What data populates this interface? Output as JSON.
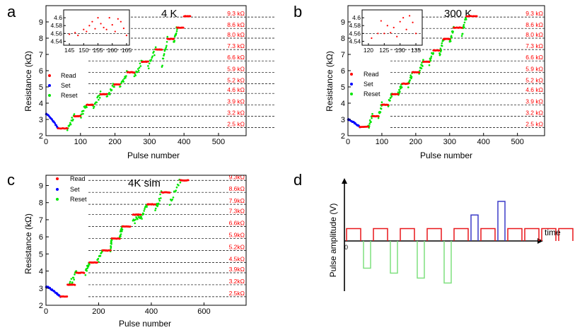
{
  "colors": {
    "read": "#ff0000",
    "set": "#0000ff",
    "reset": "#00e600",
    "level_label": "#ff0000",
    "axis": "#000000",
    "pulse_read": "#e8171a",
    "pulse_set": "#3b3bc8",
    "pulse_reset": "#7fe07f"
  },
  "chart_data": [
    {
      "panel": "a",
      "type": "scatter",
      "annotation": "4 K",
      "xlabel": "Pulse number",
      "ylabel": "Resistance (kΩ)",
      "xlim": [
        0,
        580
      ],
      "ylim": [
        2,
        10
      ],
      "xticks": [
        "0",
        "100",
        "200",
        "300",
        "400",
        "500"
      ],
      "yticks": [
        "2",
        "3",
        "4",
        "5",
        "6",
        "7",
        "8",
        "9"
      ],
      "legend": [
        "Read",
        "Set",
        "Reset"
      ],
      "legend_position": "left",
      "levels": [
        {
          "value": 2.5,
          "label": "2.5 kΩ"
        },
        {
          "value": 3.2,
          "label": "3.2 kΩ"
        },
        {
          "value": 3.9,
          "label": "3.9 kΩ"
        },
        {
          "value": 4.6,
          "label": "4.6 kΩ"
        },
        {
          "value": 5.2,
          "label": "5.2 kΩ"
        },
        {
          "value": 5.9,
          "label": "5.9 kΩ"
        },
        {
          "value": 6.6,
          "label": "6.6 kΩ"
        },
        {
          "value": 7.3,
          "label": "7.3 kΩ"
        },
        {
          "value": 8.0,
          "label": "8.0 kΩ"
        },
        {
          "value": 8.6,
          "label": "8.6 kΩ"
        },
        {
          "value": 9.3,
          "label": "9.3 kΩ"
        }
      ],
      "read_plateaus": [
        {
          "x": [
            35,
            62
          ],
          "y": 2.45
        },
        {
          "x": [
            82,
            100
          ],
          "y": 3.2
        },
        {
          "x": [
            118,
            136
          ],
          "y": 3.9
        },
        {
          "x": [
            158,
            176
          ],
          "y": 4.55
        },
        {
          "x": [
            198,
            214
          ],
          "y": 5.15
        },
        {
          "x": [
            236,
            256
          ],
          "y": 5.9
        },
        {
          "x": [
            278,
            296
          ],
          "y": 6.55
        },
        {
          "x": [
            318,
            336
          ],
          "y": 7.3
        },
        {
          "x": [
            352,
            370
          ],
          "y": 7.95
        },
        {
          "x": [
            380,
            398
          ],
          "y": 8.65
        },
        {
          "x": [
            400,
            418
          ],
          "y": 9.35
        }
      ],
      "set_segments": [
        {
          "x": [
            0,
            35
          ],
          "y_start": 3.35,
          "y_end": 2.45
        }
      ],
      "reset_ramps": [
        {
          "x": [
            62,
            82
          ],
          "y": [
            2.45,
            3.2
          ]
        },
        {
          "x": [
            100,
            118
          ],
          "y": [
            3.2,
            3.9
          ]
        },
        {
          "x": [
            136,
            158
          ],
          "y": [
            3.7,
            4.55
          ]
        },
        {
          "x": [
            176,
            198
          ],
          "y": [
            4.4,
            5.15
          ]
        },
        {
          "x": [
            214,
            236
          ],
          "y": [
            5.0,
            5.9
          ]
        },
        {
          "x": [
            256,
            278
          ],
          "y": [
            5.6,
            6.55
          ]
        },
        {
          "x": [
            296,
            318
          ],
          "y": [
            6.2,
            7.3
          ]
        },
        {
          "x": [
            336,
            352
          ],
          "y": [
            6.3,
            7.95
          ]
        },
        {
          "x": [
            370,
            380
          ],
          "y": [
            7.8,
            8.65
          ]
        }
      ],
      "inset": {
        "xlim": [
          143,
          166
        ],
        "ylim": [
          4.53,
          4.62
        ],
        "xticks": [
          "145",
          "150",
          "155",
          "160",
          "165"
        ],
        "yticks": [
          "4.54",
          "4.56",
          "4.58",
          "4.6"
        ],
        "points": [
          [
            145,
            4.558
          ],
          [
            147,
            4.562
          ],
          [
            148,
            4.555
          ],
          [
            150,
            4.57
          ],
          [
            151,
            4.565
          ],
          [
            152,
            4.58
          ],
          [
            153,
            4.59
          ],
          [
            154,
            4.572
          ],
          [
            155,
            4.6
          ],
          [
            156,
            4.585
          ],
          [
            157,
            4.575
          ],
          [
            158,
            4.57
          ],
          [
            159,
            4.6
          ],
          [
            160,
            4.582
          ],
          [
            161,
            4.565
          ],
          [
            162,
            4.597
          ],
          [
            163,
            4.59
          ],
          [
            164,
            4.573
          ],
          [
            165,
            4.555
          ]
        ]
      }
    },
    {
      "panel": "b",
      "type": "scatter",
      "annotation": "300 K",
      "xlabel": "Pulse number",
      "ylabel": "Resistance (kΩ)",
      "xlim": [
        0,
        580
      ],
      "ylim": [
        2,
        10
      ],
      "xticks": [
        "0",
        "100",
        "200",
        "300",
        "400",
        "500"
      ],
      "yticks": [
        "2",
        "3",
        "4",
        "5",
        "6",
        "7",
        "8",
        "9"
      ],
      "legend": [
        "Read",
        "Set",
        "Reset"
      ],
      "legend_position": "left",
      "levels": [
        {
          "value": 2.5,
          "label": "2.5 kΩ"
        },
        {
          "value": 3.2,
          "label": "3.2 kΩ"
        },
        {
          "value": 3.9,
          "label": "3.9 kΩ"
        },
        {
          "value": 4.6,
          "label": "4.6 kΩ"
        },
        {
          "value": 5.2,
          "label": "5.2 kΩ"
        },
        {
          "value": 5.9,
          "label": "5.9 kΩ"
        },
        {
          "value": 6.6,
          "label": "6.6 kΩ"
        },
        {
          "value": 7.3,
          "label": "7.3 kΩ"
        },
        {
          "value": 8.0,
          "label": "8.0 kΩ"
        },
        {
          "value": 8.6,
          "label": "8.6 kΩ"
        },
        {
          "value": 9.3,
          "label": "9.3 kΩ"
        }
      ],
      "read_plateaus": [
        {
          "x": [
            35,
            60
          ],
          "y": 2.55
        },
        {
          "x": [
            72,
            90
          ],
          "y": 3.2
        },
        {
          "x": [
            100,
            118
          ],
          "y": 3.9
        },
        {
          "x": [
            130,
            148
          ],
          "y": 4.55
        },
        {
          "x": [
            160,
            178
          ],
          "y": 5.2
        },
        {
          "x": [
            190,
            210
          ],
          "y": 5.9
        },
        {
          "x": [
            222,
            240
          ],
          "y": 6.55
        },
        {
          "x": [
            252,
            270
          ],
          "y": 7.25
        },
        {
          "x": [
            282,
            300
          ],
          "y": 7.95
        },
        {
          "x": [
            312,
            336
          ],
          "y": 8.65
        },
        {
          "x": [
            350,
            380
          ],
          "y": 9.35
        }
      ],
      "set_segments": [
        {
          "x": [
            0,
            35
          ],
          "y_start": 3.0,
          "y_end": 2.55
        }
      ],
      "reset_ramps": [
        {
          "x": [
            60,
            72
          ],
          "y": [
            2.55,
            3.2
          ]
        },
        {
          "x": [
            90,
            100
          ],
          "y": [
            3.2,
            3.9
          ]
        },
        {
          "x": [
            118,
            130
          ],
          "y": [
            3.9,
            4.55
          ]
        },
        {
          "x": [
            148,
            160
          ],
          "y": [
            4.5,
            5.2
          ]
        },
        {
          "x": [
            178,
            190
          ],
          "y": [
            5.1,
            5.9
          ]
        },
        {
          "x": [
            210,
            222
          ],
          "y": [
            5.9,
            6.55
          ]
        },
        {
          "x": [
            240,
            252
          ],
          "y": [
            6.5,
            7.25
          ]
        },
        {
          "x": [
            270,
            282
          ],
          "y": [
            7.0,
            7.95
          ]
        },
        {
          "x": [
            300,
            312
          ],
          "y": [
            7.7,
            8.65
          ]
        },
        {
          "x": [
            336,
            350
          ],
          "y": [
            8.2,
            9.35
          ]
        }
      ],
      "inset": {
        "xlim": [
          118,
          137
        ],
        "ylim": [
          4.53,
          4.62
        ],
        "xticks": [
          "120",
          "125",
          "130",
          "135"
        ],
        "yticks": [
          "4.54",
          "4.56",
          "4.58",
          "4.6"
        ],
        "points": [
          [
            121,
            4.548
          ],
          [
            123,
            4.56
          ],
          [
            124,
            4.592
          ],
          [
            125,
            4.56
          ],
          [
            126,
            4.58
          ],
          [
            127,
            4.562
          ],
          [
            128,
            4.575
          ],
          [
            129,
            4.552
          ],
          [
            130,
            4.59
          ],
          [
            131,
            4.6
          ],
          [
            132,
            4.57
          ],
          [
            133,
            4.605
          ],
          [
            134,
            4.588
          ],
          [
            135,
            4.56
          ]
        ]
      }
    },
    {
      "panel": "c",
      "type": "scatter",
      "annotation": "4K sim",
      "xlabel": "Pulse number",
      "ylabel": "Resistance (kΩ)",
      "xlim": [
        0,
        760
      ],
      "ylim": [
        2,
        9.6
      ],
      "xticks": [
        "0",
        "200",
        "400",
        "600"
      ],
      "yticks": [
        "2",
        "3",
        "4",
        "5",
        "6",
        "7",
        "8",
        "9"
      ],
      "legend": [
        "Read",
        "Set",
        "Reset"
      ],
      "legend_position": "top-left",
      "levels": [
        {
          "value": 2.5,
          "label": "2.5kΩ"
        },
        {
          "value": 3.2,
          "label": "3.2kΩ"
        },
        {
          "value": 3.9,
          "label": "3.9kΩ"
        },
        {
          "value": 4.5,
          "label": "4.5kΩ"
        },
        {
          "value": 5.2,
          "label": "5.2kΩ"
        },
        {
          "value": 5.9,
          "label": "5.9kΩ"
        },
        {
          "value": 6.6,
          "label": "6.6kΩ"
        },
        {
          "value": 7.3,
          "label": "7.3kΩ"
        },
        {
          "value": 7.9,
          "label": "7.9kΩ"
        },
        {
          "value": 8.6,
          "label": "8.6kΩ"
        },
        {
          "value": 9.3,
          "label": "9.3kΩ"
        }
      ],
      "read_plateaus": [
        {
          "x": [
            55,
            80
          ],
          "y": 2.5
        },
        {
          "x": [
            82,
            110
          ],
          "y": 3.2
        },
        {
          "x": [
            115,
            145
          ],
          "y": 3.9
        },
        {
          "x": [
            165,
            195
          ],
          "y": 4.5
        },
        {
          "x": [
            215,
            245
          ],
          "y": 5.2
        },
        {
          "x": [
            250,
            280
          ],
          "y": 5.9
        },
        {
          "x": [
            290,
            320
          ],
          "y": 6.6
        },
        {
          "x": [
            330,
            360
          ],
          "y": 7.3
        },
        {
          "x": [
            385,
            415
          ],
          "y": 7.9
        },
        {
          "x": [
            440,
            470
          ],
          "y": 8.6
        },
        {
          "x": [
            510,
            540
          ],
          "y": 9.3
        }
      ],
      "set_segments": [
        {
          "x": [
            0,
            55
          ],
          "y_start": 3.1,
          "y_end": 2.5
        }
      ],
      "reset_ramps": [
        {
          "x": [
            90,
            115
          ],
          "y": [
            3.2,
            3.9
          ]
        },
        {
          "x": [
            150,
            165
          ],
          "y": [
            3.9,
            4.5
          ]
        },
        {
          "x": [
            195,
            215
          ],
          "y": [
            4.5,
            5.2
          ]
        },
        {
          "x": [
            245,
            250
          ],
          "y": [
            5.3,
            5.9
          ]
        },
        {
          "x": [
            280,
            290
          ],
          "y": [
            6.0,
            6.6
          ]
        },
        {
          "x": [
            330,
            360
          ],
          "y": [
            6.8,
            7.3
          ]
        },
        {
          "x": [
            360,
            385
          ],
          "y": [
            7.0,
            7.9
          ]
        },
        {
          "x": [
            415,
            440
          ],
          "y": [
            7.6,
            8.6
          ]
        },
        {
          "x": [
            470,
            510
          ],
          "y": [
            8.0,
            9.3
          ]
        }
      ]
    },
    {
      "panel": "d",
      "type": "diagram",
      "ylabel": "Pulse amplitude (V)",
      "xlabel": "time",
      "origin_label": "0",
      "pulses": [
        {
          "kind": "read",
          "amplitude": 1
        },
        {
          "kind": "reset",
          "amplitude": -2.2
        },
        {
          "kind": "read",
          "amplitude": 1
        },
        {
          "kind": "reset",
          "amplitude": -2.6
        },
        {
          "kind": "read",
          "amplitude": 1
        },
        {
          "kind": "reset",
          "amplitude": -3.0
        },
        {
          "kind": "read",
          "amplitude": 1
        },
        {
          "kind": "reset",
          "amplitude": -3.4
        },
        {
          "kind": "read",
          "amplitude": 1
        },
        {
          "kind": "set",
          "amplitude": 2.1
        },
        {
          "kind": "read",
          "amplitude": 1
        },
        {
          "kind": "set",
          "amplitude": 3.2
        },
        {
          "kind": "read",
          "amplitude": 1
        },
        {
          "kind": "read",
          "amplitude": 1
        },
        {
          "kind": "read",
          "amplitude": 1
        },
        {
          "kind": "read",
          "amplitude": 1
        }
      ]
    }
  ]
}
